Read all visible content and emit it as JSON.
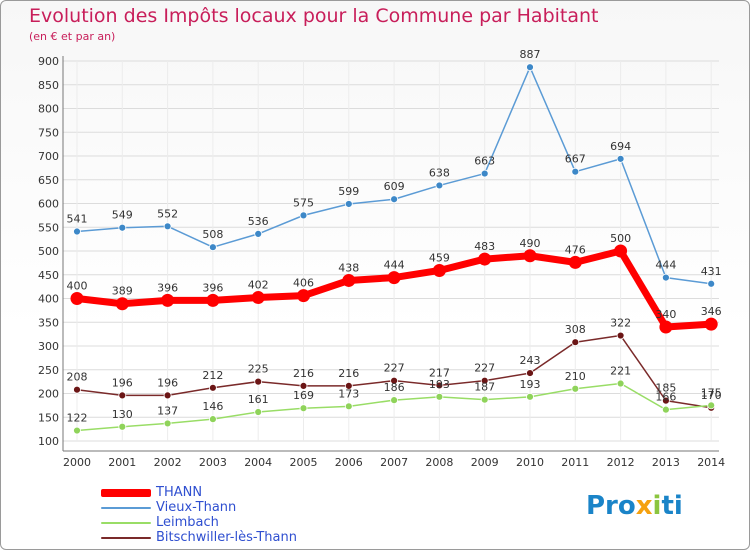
{
  "title": "Evolution des Impôts locaux pour la Commune par Habitant",
  "subtitle": "(en € et par an)",
  "logo": {
    "p1": "Pro",
    "p2": "x",
    "p3": "i",
    "p4": "ti"
  },
  "colors": {
    "title": "#c81e5a",
    "THANN": "#ff0000",
    "Vieux-Thann": "#5b9bd5",
    "Leimbach": "#99dd66",
    "Bitschwiller-lès-Thann": "#7a2a2a",
    "legend_text": "#2f4fd0",
    "grid": "#dcdcdc"
  },
  "chart_data": {
    "type": "line",
    "title": "Evolution des Impôts locaux pour la Commune par Habitant",
    "subtitle": "(en € et par an)",
    "xlabel": "",
    "ylabel": "",
    "ylim": [
      100,
      900
    ],
    "yticks": [
      100,
      150,
      200,
      250,
      300,
      350,
      400,
      450,
      500,
      550,
      600,
      650,
      700,
      750,
      800,
      850,
      900
    ],
    "grid": true,
    "legend_position": "bottom-left",
    "x": [
      "2000",
      "2001",
      "2002",
      "2003",
      "2004",
      "2005",
      "2006",
      "2007",
      "2008",
      "2009",
      "2010",
      "2011",
      "2012",
      "2013",
      "2014"
    ],
    "series": [
      {
        "name": "Vieux-Thann",
        "values": [
          541,
          549,
          552,
          508,
          536,
          575,
          599,
          609,
          638,
          663,
          887,
          667,
          694,
          444,
          431
        ]
      },
      {
        "name": "Bitschwiller-lès-Thann",
        "values": [
          208,
          196,
          196,
          212,
          225,
          216,
          216,
          227,
          217,
          227,
          243,
          308,
          322,
          185,
          170
        ]
      },
      {
        "name": "Leimbach",
        "values": [
          122,
          130,
          137,
          146,
          161,
          169,
          173,
          186,
          193,
          187,
          193,
          210,
          221,
          166,
          175
        ]
      },
      {
        "name": "THANN",
        "values": [
          400,
          389,
          396,
          396,
          402,
          406,
          438,
          444,
          459,
          483,
          490,
          476,
          500,
          340,
          346
        ]
      }
    ],
    "legend_order": [
      "THANN",
      "Vieux-Thann",
      "Leimbach",
      "Bitschwiller-lès-Thann"
    ]
  }
}
